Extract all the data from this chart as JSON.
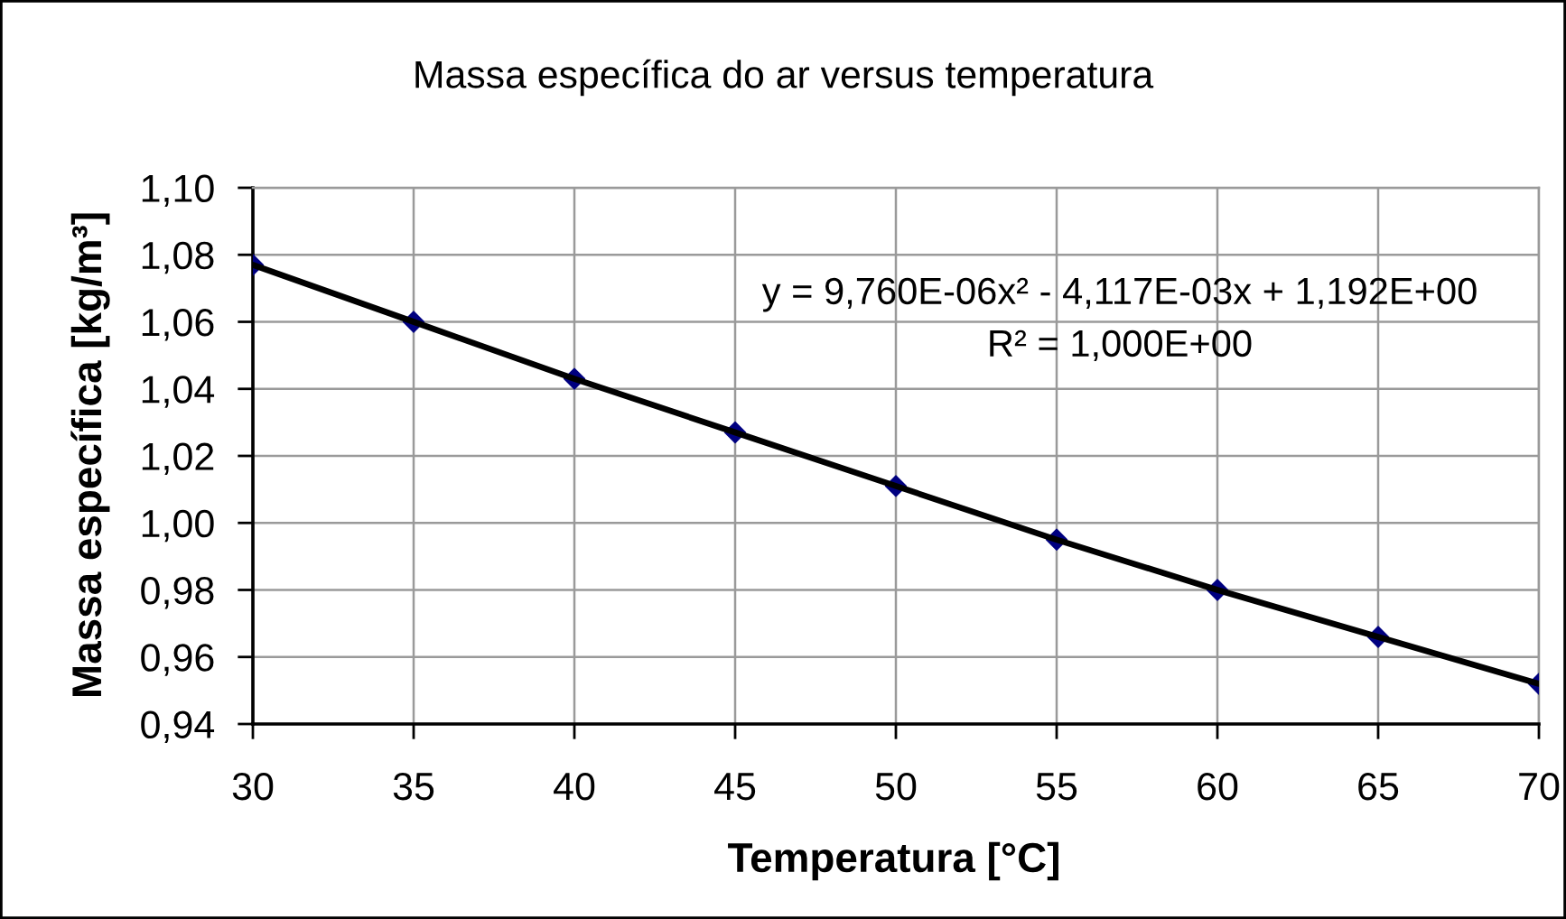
{
  "chart_data": {
    "type": "scatter",
    "title": "Massa específica do ar versus temperatura",
    "xlabel": "Temperatura [°C]",
    "ylabel": "Massa específica [kg/m³]",
    "x": [
      30,
      35,
      40,
      45,
      50,
      55,
      60,
      65,
      70
    ],
    "series": [
      {
        "color": "#000080",
        "marker": "diamond",
        "values": [
          1.077,
          1.06,
          1.043,
          1.027,
          1.011,
          0.995,
          0.98,
          0.966,
          0.952
        ]
      },
      {
        "type": "line",
        "color": "#000000",
        "marker": "none",
        "line_style": "solid",
        "x": [
          30,
          35,
          40,
          45,
          50,
          55,
          60,
          65,
          70
        ],
        "values": [
          1.077,
          1.06,
          1.043,
          1.027,
          1.011,
          0.995,
          0.98,
          0.966,
          0.952
        ]
      }
    ],
    "annotations": [
      "y = 9,760E-06x² - 4,117E-03x + 1,192E+00",
      "R² = 1,000E+00"
    ],
    "xlim": [
      30,
      70
    ],
    "xticks": [
      30,
      35,
      40,
      45,
      50,
      55,
      60,
      65,
      70
    ],
    "ylim": [
      0.94,
      1.1
    ],
    "yticks": [
      {
        "value": 0.94,
        "label": "0,94"
      },
      {
        "value": 0.96,
        "label": "0,96"
      },
      {
        "value": 0.98,
        "label": "0,98"
      },
      {
        "value": 1.0,
        "label": "1,00"
      },
      {
        "value": 1.02,
        "label": "1,02"
      },
      {
        "value": 1.04,
        "label": "1,04"
      },
      {
        "value": 1.06,
        "label": "1,06"
      },
      {
        "value": 1.08,
        "label": "1,08"
      },
      {
        "value": 1.1,
        "label": "1,10"
      }
    ],
    "grid": true
  }
}
